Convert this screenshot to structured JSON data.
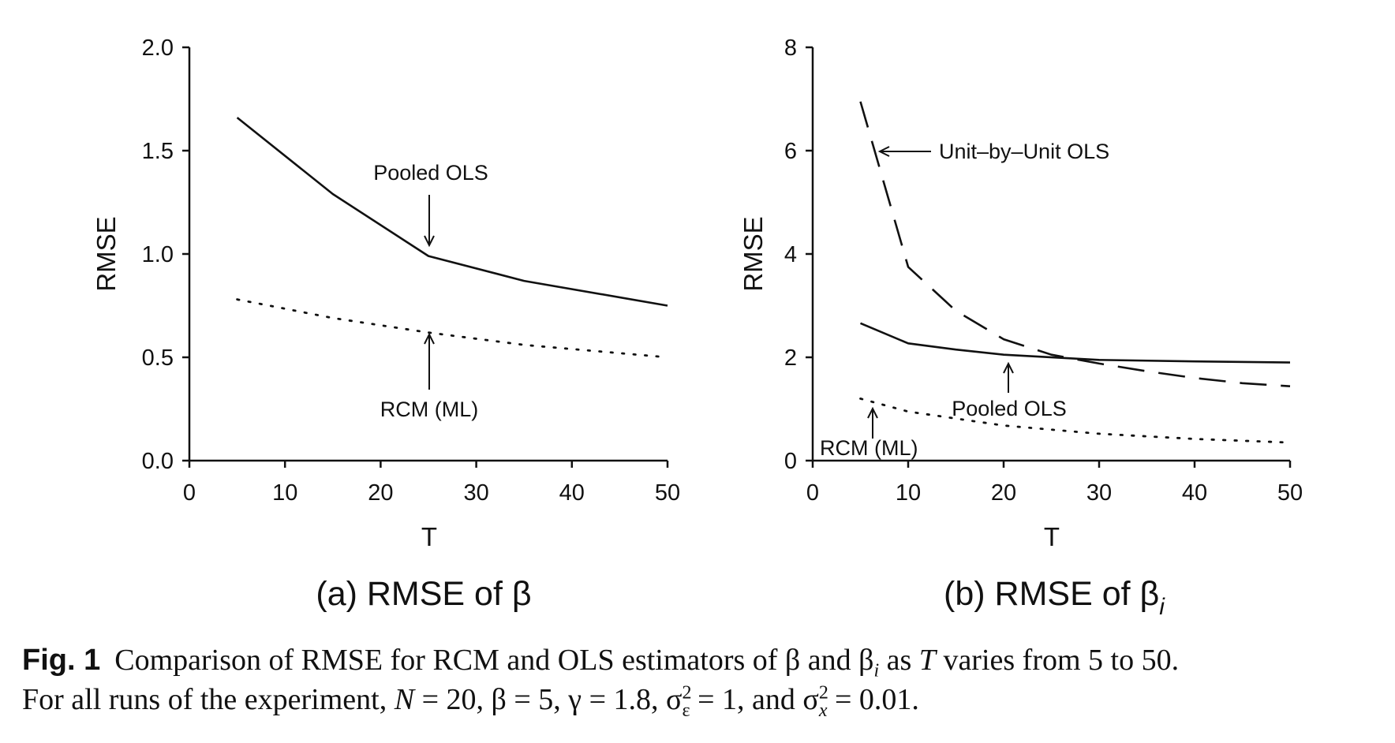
{
  "figure": {
    "caption_label": "Fig. 1",
    "caption_line1": "Comparison of RMSE for RCM and OLS estimators of β and β",
    "caption_line1_sub": "i",
    "caption_line1_mid": " as ",
    "caption_line1_var": "T",
    "caption_line1_end": " varies from 5 to 50.",
    "caption_line2_a": "For all runs of the experiment, ",
    "caption_line2_N": "N",
    "caption_line2_b": " = 20, β = 5, γ = 1.8, σ",
    "caption_line2_sup1": "2",
    "caption_line2_sub1": "ε",
    "caption_line2_c": " = 1, and σ",
    "caption_line2_sup2": "2",
    "caption_line2_sub2": "x",
    "caption_line2_d": " = 0.01."
  },
  "chart_data": [
    {
      "type": "line",
      "panel_label": "(a) RMSE of β",
      "panel_label_sub": "",
      "xlabel": "T",
      "ylabel": "RMSE",
      "xlim": [
        0,
        50
      ],
      "ylim": [
        0,
        2.0
      ],
      "xticks": [
        "0",
        "10",
        "20",
        "30",
        "40",
        "50"
      ],
      "yticks": [
        "0.0",
        "0.5",
        "1.0",
        "1.5",
        "2.0"
      ],
      "grid": false,
      "series": [
        {
          "name": "Pooled OLS",
          "style": "solid",
          "x": [
            5,
            15,
            25,
            35,
            50
          ],
          "y": [
            1.66,
            1.29,
            0.99,
            0.87,
            0.75
          ]
        },
        {
          "name": "RCM (ML)",
          "style": "dotted",
          "x": [
            5,
            15,
            25,
            35,
            50
          ],
          "y": [
            0.78,
            0.69,
            0.62,
            0.56,
            0.5
          ]
        }
      ],
      "annotations": [
        {
          "text": "Pooled OLS",
          "points_to": [
            25,
            0.99
          ]
        },
        {
          "text": "RCM (ML)",
          "points_to": [
            25,
            0.62
          ]
        }
      ]
    },
    {
      "type": "line",
      "panel_label": "(b) RMSE of β",
      "panel_label_sub": "i",
      "xlabel": "T",
      "ylabel": "RMSE",
      "xlim": [
        0,
        50
      ],
      "ylim": [
        0,
        8
      ],
      "xticks": [
        "0",
        "10",
        "20",
        "30",
        "40",
        "50"
      ],
      "yticks": [
        "0",
        "2",
        "4",
        "6",
        "8"
      ],
      "grid": false,
      "series": [
        {
          "name": "Unit-by-Unit OLS",
          "style": "dashed",
          "x": [
            5,
            10,
            15,
            20,
            25,
            30,
            35,
            40,
            45,
            50
          ],
          "y": [
            6.95,
            3.75,
            2.9,
            2.35,
            2.05,
            1.88,
            1.73,
            1.6,
            1.5,
            1.44
          ]
        },
        {
          "name": "Pooled OLS",
          "style": "solid",
          "x": [
            5,
            10,
            15,
            20,
            30,
            40,
            50
          ],
          "y": [
            2.66,
            2.27,
            2.15,
            2.05,
            1.95,
            1.92,
            1.9
          ]
        },
        {
          "name": "RCM (ML)",
          "style": "dotted",
          "x": [
            5,
            10,
            20,
            30,
            40,
            50
          ],
          "y": [
            1.2,
            0.95,
            0.68,
            0.52,
            0.42,
            0.35
          ]
        }
      ],
      "annotations": [
        {
          "text": "Unit–by–Unit OLS",
          "points_to": [
            7,
            6.0
          ]
        },
        {
          "text": "Pooled OLS",
          "points_to": [
            20,
            1.95
          ]
        },
        {
          "text": "RCM (ML)",
          "points_to": [
            6,
            1.0
          ]
        }
      ]
    }
  ],
  "colors": {
    "ink": "#111111",
    "background": "#ffffff"
  }
}
